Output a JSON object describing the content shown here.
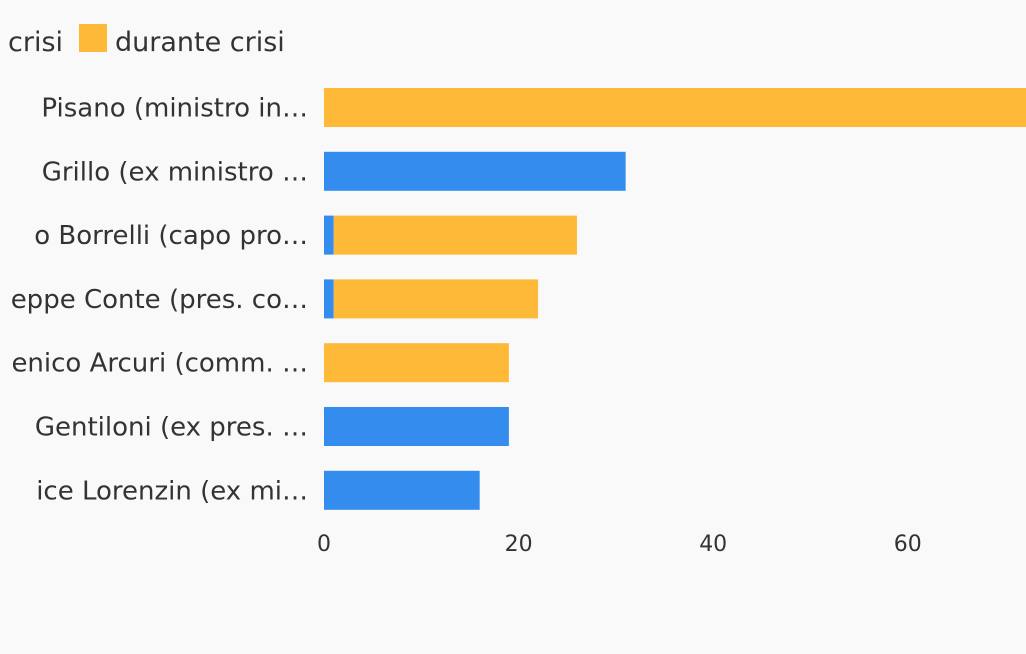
{
  "chart_data": {
    "type": "bar",
    "orientation": "horizontal",
    "stacked": true,
    "categories": [
      "Pisano (ministro in…",
      "Grillo (ex ministro …",
      "o Borrelli (capo pro…",
      "eppe Conte (pres. co…",
      "enico Arcuri (comm. …",
      "Gentiloni (ex pres. …",
      "ice Lorenzin (ex mi…"
    ],
    "series": [
      {
        "name": "crisi",
        "color": "#338cee",
        "values": [
          0,
          31,
          1,
          1,
          0,
          19,
          16
        ]
      },
      {
        "name": "durante crisi",
        "color": "#ffb938",
        "values": [
          73,
          0,
          25,
          21,
          19,
          0,
          0
        ]
      }
    ],
    "x_ticks": [
      "0",
      "20",
      "40",
      "60"
    ],
    "xlim": [
      0,
      72
    ],
    "grid": false,
    "legend_position": "top-left"
  }
}
